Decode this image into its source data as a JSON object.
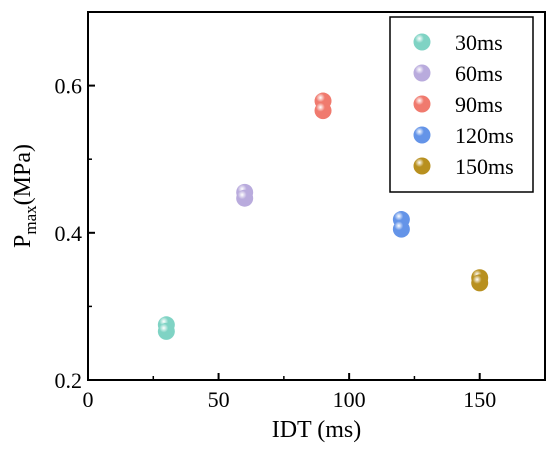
{
  "chart_data": {
    "type": "scatter",
    "title": "",
    "xlabel": "IDT (ms)",
    "ylabel": {
      "main": "P",
      "sub": "max",
      "rest": "(MPa)"
    },
    "xlim": [
      0,
      175
    ],
    "ylim": [
      0.2,
      0.7
    ],
    "xticks": [
      0,
      50,
      100,
      150
    ],
    "yticks": [
      0.2,
      0.4,
      0.6
    ],
    "xtick_labels": [
      "0",
      "50",
      "100",
      "150"
    ],
    "ytick_labels": [
      "0.2",
      "0.4",
      "0.6"
    ],
    "grid": false,
    "legend_position": "top-right",
    "series": [
      {
        "name": "30ms",
        "color": "#7fd3c4",
        "points": [
          {
            "x": 30,
            "y": 0.275
          },
          {
            "x": 30,
            "y": 0.266
          }
        ]
      },
      {
        "name": "60ms",
        "color": "#b9abdd",
        "points": [
          {
            "x": 60,
            "y": 0.455
          },
          {
            "x": 60,
            "y": 0.447
          }
        ]
      },
      {
        "name": "90ms",
        "color": "#f07a6e",
        "points": [
          {
            "x": 90,
            "y": 0.579
          },
          {
            "x": 90,
            "y": 0.566
          }
        ]
      },
      {
        "name": "120ms",
        "color": "#6494e8",
        "points": [
          {
            "x": 120,
            "y": 0.418
          },
          {
            "x": 120,
            "y": 0.405
          }
        ]
      },
      {
        "name": "150ms",
        "color": "#b8901f",
        "points": [
          {
            "x": 150,
            "y": 0.339
          },
          {
            "x": 150,
            "y": 0.332
          }
        ]
      }
    ]
  }
}
